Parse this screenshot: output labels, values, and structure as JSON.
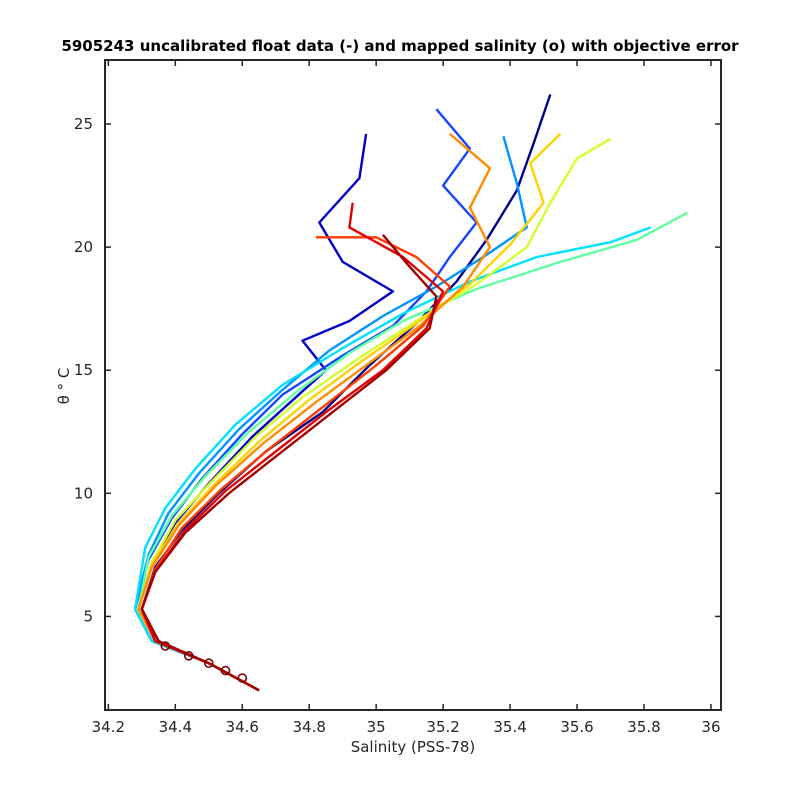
{
  "chart_data": {
    "type": "line",
    "title": "5905243 uncalibrated float data (-) and mapped salinity (o) with objective error",
    "xlabel": "Salinity (PSS-78)",
    "ylabel": "θ ° C",
    "xlim": [
      34.19,
      36.03
    ],
    "ylim": [
      1.2,
      27.6
    ],
    "xticks": [
      "34.2",
      "34.4",
      "34.6",
      "34.8",
      "35",
      "35.2",
      "35.4",
      "35.6",
      "35.8",
      "36"
    ],
    "yticks": [
      "5",
      "10",
      "15",
      "20",
      "25"
    ],
    "grid": false,
    "colormap": "jet",
    "colormap_stops": [
      "#00008f",
      "#0000ff",
      "#00ffff",
      "#80ff80",
      "#ffff00",
      "#ff8000",
      "#ff0000",
      "#800000"
    ],
    "series": [
      {
        "color": "#00008f",
        "points": [
          [
            34.65,
            2.0
          ],
          [
            34.5,
            3.1
          ],
          [
            34.35,
            4.0
          ],
          [
            34.3,
            5.3
          ],
          [
            34.34,
            7.0
          ],
          [
            34.42,
            8.5
          ],
          [
            34.53,
            10.0
          ],
          [
            34.67,
            11.7
          ],
          [
            34.84,
            13.3
          ],
          [
            34.98,
            15.2
          ],
          [
            35.12,
            16.9
          ],
          [
            35.24,
            18.6
          ],
          [
            35.33,
            20.3
          ],
          [
            35.42,
            22.3
          ],
          [
            35.47,
            24.2
          ],
          [
            35.52,
            26.2
          ]
        ]
      },
      {
        "color": "#0000c8",
        "points": [
          [
            34.65,
            2.0
          ],
          [
            34.5,
            3.1
          ],
          [
            34.34,
            4.0
          ],
          [
            34.29,
            5.3
          ],
          [
            34.33,
            7.2
          ],
          [
            34.4,
            8.8
          ],
          [
            34.5,
            10.4
          ],
          [
            34.63,
            12.3
          ],
          [
            34.76,
            13.9
          ],
          [
            34.85,
            15.0
          ],
          [
            34.78,
            16.2
          ],
          [
            34.92,
            17.0
          ],
          [
            35.05,
            18.2
          ],
          [
            34.9,
            19.4
          ],
          [
            34.83,
            21.0
          ],
          [
            34.95,
            22.8
          ],
          [
            34.97,
            24.6
          ]
        ]
      },
      {
        "color": "#1446ff",
        "points": [
          [
            34.65,
            2.0
          ],
          [
            34.5,
            3.1
          ],
          [
            34.33,
            4.0
          ],
          [
            34.28,
            5.3
          ],
          [
            34.32,
            7.3
          ],
          [
            34.39,
            9.0
          ],
          [
            34.48,
            10.6
          ],
          [
            34.6,
            12.4
          ],
          [
            34.72,
            14.0
          ],
          [
            34.9,
            15.6
          ],
          [
            35.05,
            16.8
          ],
          [
            35.15,
            18.2
          ],
          [
            35.22,
            19.6
          ],
          [
            35.3,
            21.0
          ],
          [
            35.2,
            22.5
          ],
          [
            35.28,
            24.0
          ],
          [
            35.18,
            25.6
          ]
        ]
      },
      {
        "color": "#0096ff",
        "points": [
          [
            34.65,
            2.0
          ],
          [
            34.5,
            3.1
          ],
          [
            34.33,
            4.0
          ],
          [
            34.28,
            5.3
          ],
          [
            34.32,
            7.5
          ],
          [
            34.38,
            9.2
          ],
          [
            34.47,
            10.8
          ],
          [
            34.59,
            12.6
          ],
          [
            34.72,
            14.2
          ],
          [
            34.86,
            15.8
          ],
          [
            35.02,
            17.2
          ],
          [
            35.18,
            18.4
          ],
          [
            35.32,
            19.6
          ],
          [
            35.45,
            20.8
          ],
          [
            35.42,
            22.6
          ],
          [
            35.38,
            24.5
          ]
        ]
      },
      {
        "color": "#00e1ff",
        "points": [
          [
            34.65,
            2.0
          ],
          [
            34.5,
            3.1
          ],
          [
            34.33,
            4.0
          ],
          [
            34.28,
            5.3
          ],
          [
            34.31,
            7.8
          ],
          [
            34.37,
            9.4
          ],
          [
            34.46,
            11.0
          ],
          [
            34.58,
            12.8
          ],
          [
            34.72,
            14.4
          ],
          [
            34.9,
            15.9
          ],
          [
            35.08,
            17.3
          ],
          [
            35.28,
            18.6
          ],
          [
            35.48,
            19.6
          ],
          [
            35.7,
            20.2
          ],
          [
            35.82,
            20.8
          ]
        ]
      },
      {
        "color": "#60ffa0",
        "points": [
          [
            34.65,
            2.0
          ],
          [
            34.5,
            3.1
          ],
          [
            34.34,
            4.0
          ],
          [
            34.29,
            5.3
          ],
          [
            34.32,
            7.4
          ],
          [
            34.39,
            9.1
          ],
          [
            34.49,
            10.7
          ],
          [
            34.62,
            12.5
          ],
          [
            34.76,
            14.1
          ],
          [
            34.92,
            15.7
          ],
          [
            35.08,
            17.0
          ],
          [
            35.3,
            18.3
          ],
          [
            35.55,
            19.4
          ],
          [
            35.78,
            20.3
          ],
          [
            35.93,
            21.4
          ]
        ]
      },
      {
        "color": "#d2ff2d",
        "points": [
          [
            34.65,
            2.0
          ],
          [
            34.5,
            3.1
          ],
          [
            34.34,
            4.0
          ],
          [
            34.29,
            5.3
          ],
          [
            34.33,
            7.2
          ],
          [
            34.4,
            8.9
          ],
          [
            34.51,
            10.5
          ],
          [
            34.64,
            12.3
          ],
          [
            34.78,
            13.9
          ],
          [
            34.95,
            15.5
          ],
          [
            35.12,
            17.0
          ],
          [
            35.3,
            18.5
          ],
          [
            35.45,
            20.0
          ],
          [
            35.52,
            21.8
          ],
          [
            35.6,
            23.6
          ],
          [
            35.7,
            24.4
          ]
        ]
      },
      {
        "color": "#ffd200",
        "points": [
          [
            34.65,
            2.0
          ],
          [
            34.5,
            3.1
          ],
          [
            34.34,
            4.0
          ],
          [
            34.29,
            5.3
          ],
          [
            34.33,
            7.1
          ],
          [
            34.41,
            8.8
          ],
          [
            34.52,
            10.4
          ],
          [
            34.65,
            12.1
          ],
          [
            34.8,
            13.8
          ],
          [
            34.96,
            15.4
          ],
          [
            35.12,
            16.9
          ],
          [
            35.28,
            18.5
          ],
          [
            35.4,
            20.1
          ],
          [
            35.5,
            21.8
          ],
          [
            35.46,
            23.4
          ],
          [
            35.55,
            24.6
          ]
        ]
      },
      {
        "color": "#ff8c00",
        "points": [
          [
            34.65,
            2.0
          ],
          [
            34.5,
            3.1
          ],
          [
            34.34,
            4.0
          ],
          [
            34.29,
            5.3
          ],
          [
            34.33,
            7.0
          ],
          [
            34.41,
            8.7
          ],
          [
            34.52,
            10.3
          ],
          [
            34.66,
            12.0
          ],
          [
            34.82,
            13.7
          ],
          [
            34.98,
            15.3
          ],
          [
            35.13,
            16.8
          ],
          [
            35.26,
            18.4
          ],
          [
            35.34,
            20.0
          ],
          [
            35.28,
            21.6
          ],
          [
            35.34,
            23.2
          ],
          [
            35.22,
            24.6
          ]
        ]
      },
      {
        "color": "#ff3c00",
        "points": [
          [
            34.65,
            2.0
          ],
          [
            34.5,
            3.1
          ],
          [
            34.34,
            4.0
          ],
          [
            34.3,
            5.3
          ],
          [
            34.34,
            6.9
          ],
          [
            34.42,
            8.6
          ],
          [
            34.54,
            10.2
          ],
          [
            34.68,
            11.8
          ],
          [
            34.84,
            13.5
          ],
          [
            35.0,
            15.2
          ],
          [
            35.14,
            16.8
          ],
          [
            35.22,
            18.4
          ],
          [
            35.12,
            19.6
          ],
          [
            35.0,
            20.4
          ],
          [
            34.82,
            20.4
          ]
        ]
      },
      {
        "color": "#e10000",
        "points": [
          [
            34.65,
            2.0
          ],
          [
            34.5,
            3.1
          ],
          [
            34.34,
            4.0
          ],
          [
            34.3,
            5.3
          ],
          [
            34.34,
            6.8
          ],
          [
            34.43,
            8.5
          ],
          [
            34.55,
            10.1
          ],
          [
            34.7,
            11.7
          ],
          [
            34.86,
            13.4
          ],
          [
            35.02,
            15.0
          ],
          [
            35.15,
            16.7
          ],
          [
            35.2,
            18.2
          ],
          [
            35.08,
            19.6
          ],
          [
            34.92,
            20.8
          ],
          [
            34.93,
            21.8
          ]
        ]
      },
      {
        "color": "#a00000",
        "points": [
          [
            34.65,
            2.0
          ],
          [
            34.5,
            3.1
          ],
          [
            34.35,
            4.0
          ],
          [
            34.3,
            5.3
          ],
          [
            34.34,
            6.8
          ],
          [
            34.43,
            8.4
          ],
          [
            34.56,
            10.0
          ],
          [
            34.71,
            11.6
          ],
          [
            34.87,
            13.3
          ],
          [
            35.03,
            15.0
          ],
          [
            35.16,
            16.7
          ],
          [
            35.18,
            18.0
          ],
          [
            35.1,
            19.2
          ],
          [
            35.02,
            20.5
          ]
        ]
      }
    ],
    "mapped_points": [
      [
        34.37,
        3.8
      ],
      [
        34.44,
        3.4
      ],
      [
        34.5,
        3.1
      ],
      [
        34.55,
        2.8
      ],
      [
        34.6,
        2.5
      ]
    ]
  }
}
